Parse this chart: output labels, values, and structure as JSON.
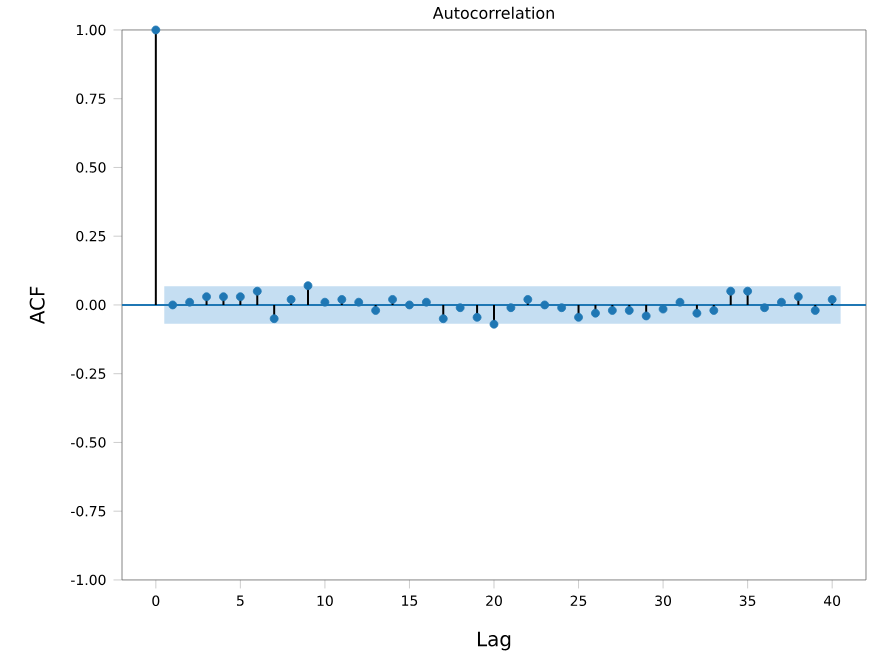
{
  "chart_data": {
    "type": "lollipop",
    "title": "Autocorrelation",
    "xlabel": "Lag",
    "ylabel": "ACF",
    "x": [
      0,
      1,
      2,
      3,
      4,
      5,
      6,
      7,
      8,
      9,
      10,
      11,
      12,
      13,
      14,
      15,
      16,
      17,
      18,
      19,
      20,
      21,
      22,
      23,
      24,
      25,
      26,
      27,
      28,
      29,
      30,
      31,
      32,
      33,
      34,
      35,
      36,
      37,
      38,
      39,
      40
    ],
    "values": [
      1.0,
      0.0,
      0.01,
      0.03,
      0.03,
      0.03,
      0.05,
      -0.05,
      0.02,
      0.07,
      0.01,
      0.02,
      0.01,
      -0.02,
      0.02,
      0.0,
      0.01,
      -0.05,
      -0.01,
      -0.045,
      -0.07,
      -0.01,
      0.02,
      0.0,
      -0.01,
      -0.045,
      -0.03,
      -0.02,
      -0.02,
      -0.04,
      -0.015,
      0.01,
      -0.03,
      -0.02,
      0.05,
      0.05,
      -0.01,
      0.01,
      0.03,
      -0.02,
      0.02
    ],
    "color": "#1f77b4",
    "marker": "circle",
    "xlim": [
      -2,
      42
    ],
    "xticks": [
      0,
      5,
      10,
      15,
      20,
      25,
      30,
      35,
      40
    ],
    "ylim": [
      -1,
      1
    ],
    "yticks": [
      {
        "value": -1,
        "label": "-1.00"
      },
      {
        "value": -0.75,
        "label": "-0.75"
      },
      {
        "value": -0.5,
        "label": "-0.50"
      },
      {
        "value": -0.25,
        "label": "-0.25"
      },
      {
        "value": 0,
        "label": "0.00"
      },
      {
        "value": 0.25,
        "label": "0.25"
      },
      {
        "value": 0.5,
        "label": "0.50"
      },
      {
        "value": 0.75,
        "label": "0.75"
      },
      {
        "value": 1,
        "label": "1.00"
      }
    ],
    "ref_lines": [
      {
        "axis": "y",
        "value": 0,
        "color": "#1f77b4"
      }
    ],
    "bands": [
      {
        "axis": "y",
        "from": -0.068,
        "to": 0.068,
        "color": "#c5def2"
      }
    ]
  }
}
